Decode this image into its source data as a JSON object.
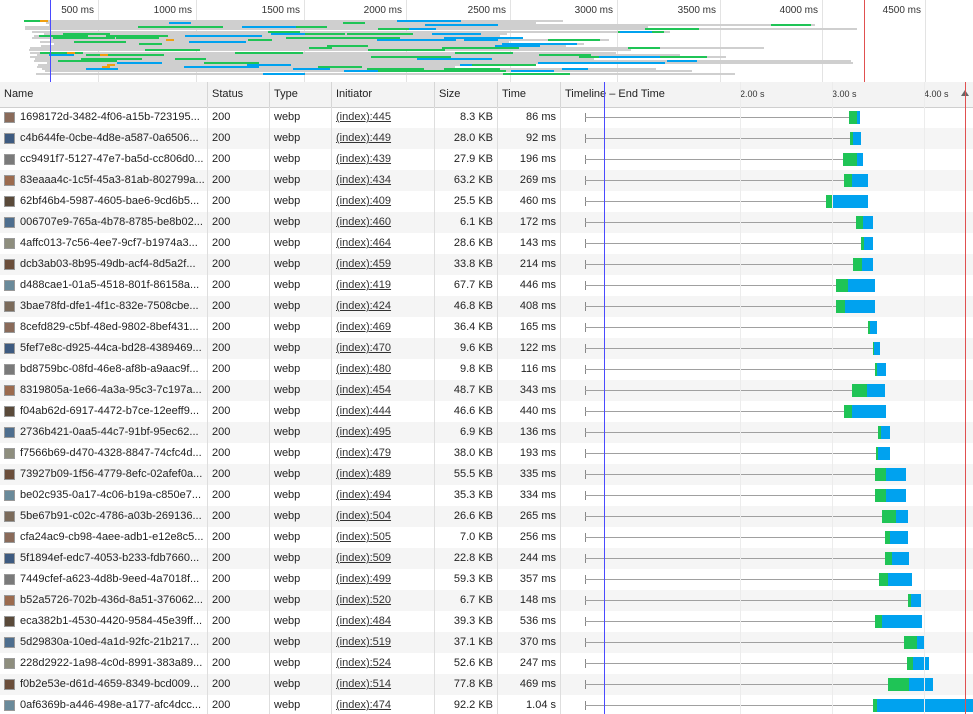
{
  "overview": {
    "ticks": [
      "500 ms",
      "1000 ms",
      "1500 ms",
      "2000 ms",
      "2500 ms",
      "3000 ms",
      "3500 ms",
      "4000 ms",
      "4500 ms"
    ]
  },
  "headers": {
    "name": "Name",
    "status": "Status",
    "type": "Type",
    "initiator": "Initiator",
    "size": "Size",
    "time": "Time",
    "timeline": "Timeline – End Time",
    "timeline_ticks": [
      "2.00 s",
      "3.00 s",
      "4.00 s"
    ]
  },
  "colors": {
    "waiting": "#1fc456",
    "download": "#00a2ef",
    "dom_content_loaded": "#4a4aff",
    "load": "#e05050"
  },
  "rows": [
    {
      "name": "1698172d-3482-4f06-a15b-723195...",
      "status": "200",
      "type": "webp",
      "initiator": "(index):445",
      "size": "8.3 KB",
      "time": "86 ms"
    },
    {
      "name": "c4b644fe-0cbe-4d8e-a587-0a6506...",
      "status": "200",
      "type": "webp",
      "initiator": "(index):449",
      "size": "28.0 KB",
      "time": "92 ms"
    },
    {
      "name": "cc9491f7-5127-47e7-ba5d-cc806d0...",
      "status": "200",
      "type": "webp",
      "initiator": "(index):439",
      "size": "27.9 KB",
      "time": "196 ms"
    },
    {
      "name": "83eaaa4c-1c5f-45a3-81ab-802799a...",
      "status": "200",
      "type": "webp",
      "initiator": "(index):434",
      "size": "63.2 KB",
      "time": "269 ms"
    },
    {
      "name": "62bf46b4-5987-4605-bae6-9cd6b5...",
      "status": "200",
      "type": "webp",
      "initiator": "(index):409",
      "size": "25.5 KB",
      "time": "460 ms"
    },
    {
      "name": "006707e9-765a-4b78-8785-be8b02...",
      "status": "200",
      "type": "webp",
      "initiator": "(index):460",
      "size": "6.1 KB",
      "time": "172 ms"
    },
    {
      "name": "4affc013-7c56-4ee7-9cf7-b1974a3...",
      "status": "200",
      "type": "webp",
      "initiator": "(index):464",
      "size": "28.6 KB",
      "time": "143 ms"
    },
    {
      "name": "dcb3ab03-8b95-49db-acf4-8d5a2f...",
      "status": "200",
      "type": "webp",
      "initiator": "(index):459",
      "size": "33.8 KB",
      "time": "214 ms"
    },
    {
      "name": "d488cae1-01a5-4518-801f-86158a...",
      "status": "200",
      "type": "webp",
      "initiator": "(index):419",
      "size": "67.7 KB",
      "time": "446 ms"
    },
    {
      "name": "3bae78fd-dfe1-4f1c-832e-7508cbe...",
      "status": "200",
      "type": "webp",
      "initiator": "(index):424",
      "size": "46.8 KB",
      "time": "408 ms"
    },
    {
      "name": "8cefd829-c5bf-48ed-9802-8bef431...",
      "status": "200",
      "type": "webp",
      "initiator": "(index):469",
      "size": "36.4 KB",
      "time": "165 ms"
    },
    {
      "name": "5fef7e8c-d925-44ca-bd28-4389469...",
      "status": "200",
      "type": "webp",
      "initiator": "(index):470",
      "size": "9.6 KB",
      "time": "122 ms"
    },
    {
      "name": "bd8759bc-08fd-46e8-af8b-a9aac9f...",
      "status": "200",
      "type": "webp",
      "initiator": "(index):480",
      "size": "9.8 KB",
      "time": "116 ms"
    },
    {
      "name": "8319805a-1e66-4a3a-95c3-7c197a...",
      "status": "200",
      "type": "webp",
      "initiator": "(index):454",
      "size": "48.7 KB",
      "time": "343 ms"
    },
    {
      "name": "f04ab62d-6917-4472-b7ce-12eeff9...",
      "status": "200",
      "type": "webp",
      "initiator": "(index):444",
      "size": "46.6 KB",
      "time": "440 ms"
    },
    {
      "name": "2736b421-0aa5-44c7-91bf-95ec62...",
      "status": "200",
      "type": "webp",
      "initiator": "(index):495",
      "size": "6.9 KB",
      "time": "136 ms"
    },
    {
      "name": "f7566b69-d470-4328-8847-74cfc4d...",
      "status": "200",
      "type": "webp",
      "initiator": "(index):479",
      "size": "38.0 KB",
      "time": "193 ms"
    },
    {
      "name": "73927b09-1f56-4779-8efc-02afef0a...",
      "status": "200",
      "type": "webp",
      "initiator": "(index):489",
      "size": "55.5 KB",
      "time": "335 ms"
    },
    {
      "name": "be02c935-0a17-4c06-b19a-c850e7...",
      "status": "200",
      "type": "webp",
      "initiator": "(index):494",
      "size": "35.3 KB",
      "time": "334 ms"
    },
    {
      "name": "5be67b91-c02c-4786-a03b-269136...",
      "status": "200",
      "type": "webp",
      "initiator": "(index):504",
      "size": "26.6 KB",
      "time": "265 ms"
    },
    {
      "name": "cfa24ac9-cb98-4aee-adb1-e12e8c5...",
      "status": "200",
      "type": "webp",
      "initiator": "(index):505",
      "size": "7.0 KB",
      "time": "256 ms"
    },
    {
      "name": "5f1894ef-edc7-4053-b233-fdb7660...",
      "status": "200",
      "type": "webp",
      "initiator": "(index):509",
      "size": "22.8 KB",
      "time": "244 ms"
    },
    {
      "name": "7449cfef-a623-4d8b-9eed-4a7018f...",
      "status": "200",
      "type": "webp",
      "initiator": "(index):499",
      "size": "59.3 KB",
      "time": "357 ms"
    },
    {
      "name": "b52a5726-702b-436d-8a51-376062...",
      "status": "200",
      "type": "webp",
      "initiator": "(index):520",
      "size": "6.7 KB",
      "time": "148 ms"
    },
    {
      "name": "eca382b1-4530-4420-9584-45e39ff...",
      "status": "200",
      "type": "webp",
      "initiator": "(index):484",
      "size": "39.3 KB",
      "time": "536 ms"
    },
    {
      "name": "5d29830a-10ed-4a1d-92fc-21b217...",
      "status": "200",
      "type": "webp",
      "initiator": "(index):519",
      "size": "37.1 KB",
      "time": "370 ms"
    },
    {
      "name": "228d2922-1a98-4c0d-8991-383a89...",
      "status": "200",
      "type": "webp",
      "initiator": "(index):524",
      "size": "52.6 KB",
      "time": "247 ms"
    },
    {
      "name": "f0b2e53e-d61d-4659-8349-bcd009...",
      "status": "200",
      "type": "webp",
      "initiator": "(index):514",
      "size": "77.8 KB",
      "time": "469 ms"
    },
    {
      "name": "0af6369b-a446-498e-a177-afc4dcc...",
      "status": "200",
      "type": "webp",
      "initiator": "(index):474",
      "size": "92.2 KB",
      "time": "1.04 s"
    }
  ]
}
